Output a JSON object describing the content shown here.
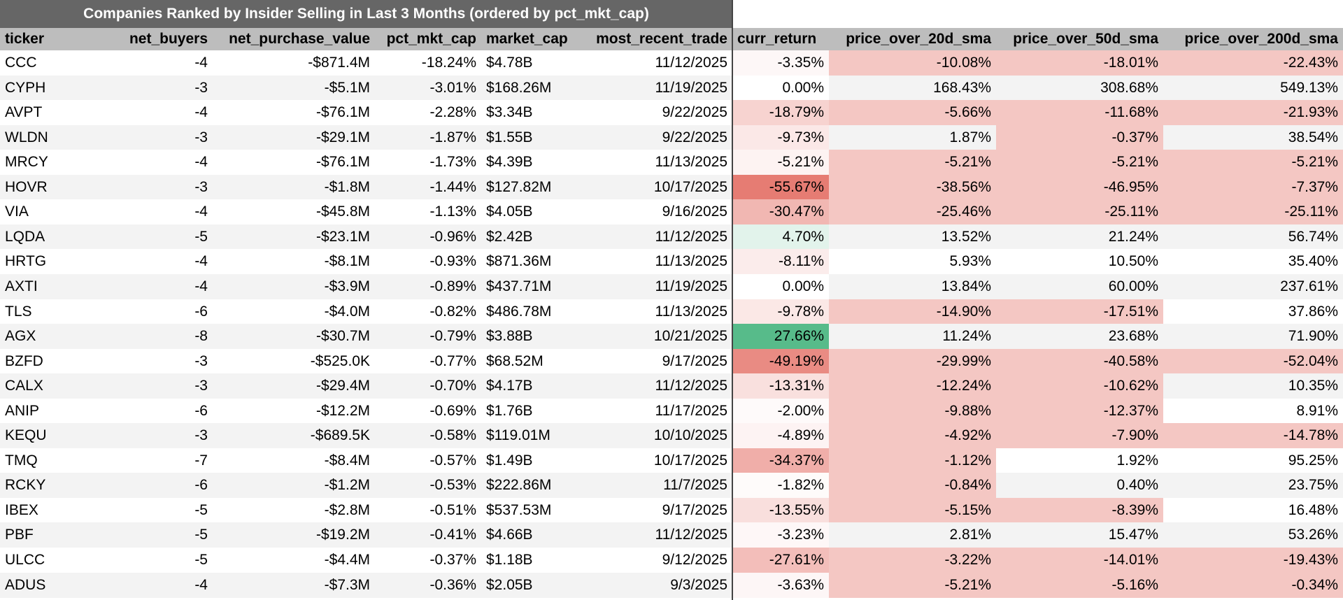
{
  "title": "Companies Ranked by Insider Selling in Last 3 Months (ordered by pct_mkt_cap)",
  "table": {
    "columns": [
      "ticker",
      "net_buyers",
      "net_purchase_value",
      "pct_mkt_cap",
      "market_cap",
      "most_recent_trade",
      "curr_return",
      "price_over_20d_sma",
      "price_over_50d_sma",
      "price_over_200d_sma"
    ],
    "rows": [
      [
        "CCC",
        "-4",
        "-$871.4M",
        "-18.24%",
        "$4.78B",
        "11/12/2025",
        "-3.35%",
        "-10.08%",
        "-18.01%",
        "-22.43%"
      ],
      [
        "CYPH",
        "-3",
        "-$5.1M",
        "-3.01%",
        "$168.26M",
        "11/19/2025",
        "0.00%",
        "168.43%",
        "308.68%",
        "549.13%"
      ],
      [
        "AVPT",
        "-4",
        "-$76.1M",
        "-2.28%",
        "$3.34B",
        "9/22/2025",
        "-18.79%",
        "-5.66%",
        "-11.68%",
        "-21.93%"
      ],
      [
        "WLDN",
        "-3",
        "-$29.1M",
        "-1.87%",
        "$1.55B",
        "9/22/2025",
        "-9.73%",
        "1.87%",
        "-0.37%",
        "38.54%"
      ],
      [
        "MRCY",
        "-4",
        "-$76.1M",
        "-1.73%",
        "$4.39B",
        "11/13/2025",
        "-5.21%",
        "-5.21%",
        "-5.21%",
        "-5.21%"
      ],
      [
        "HOVR",
        "-3",
        "-$1.8M",
        "-1.44%",
        "$127.82M",
        "10/17/2025",
        "-55.67%",
        "-38.56%",
        "-46.95%",
        "-7.37%"
      ],
      [
        "VIA",
        "-4",
        "-$45.8M",
        "-1.13%",
        "$4.05B",
        "9/16/2025",
        "-30.47%",
        "-25.46%",
        "-25.11%",
        "-25.11%"
      ],
      [
        "LQDA",
        "-5",
        "-$23.1M",
        "-0.96%",
        "$2.42B",
        "11/12/2025",
        "4.70%",
        "13.52%",
        "21.24%",
        "56.74%"
      ],
      [
        "HRTG",
        "-4",
        "-$8.1M",
        "-0.93%",
        "$871.36M",
        "11/13/2025",
        "-8.11%",
        "5.93%",
        "10.50%",
        "35.40%"
      ],
      [
        "AXTI",
        "-4",
        "-$3.9M",
        "-0.89%",
        "$437.71M",
        "11/19/2025",
        "0.00%",
        "13.84%",
        "60.00%",
        "237.61%"
      ],
      [
        "TLS",
        "-6",
        "-$4.0M",
        "-0.82%",
        "$486.78M",
        "11/13/2025",
        "-9.78%",
        "-14.90%",
        "-17.51%",
        "37.86%"
      ],
      [
        "AGX",
        "-8",
        "-$30.7M",
        "-0.79%",
        "$3.88B",
        "10/21/2025",
        "27.66%",
        "11.24%",
        "23.68%",
        "71.90%"
      ],
      [
        "BZFD",
        "-3",
        "-$525.0K",
        "-0.77%",
        "$68.52M",
        "9/17/2025",
        "-49.19%",
        "-29.99%",
        "-40.58%",
        "-52.04%"
      ],
      [
        "CALX",
        "-3",
        "-$29.4M",
        "-0.70%",
        "$4.17B",
        "11/12/2025",
        "-13.31%",
        "-12.24%",
        "-10.62%",
        "10.35%"
      ],
      [
        "ANIP",
        "-6",
        "-$12.2M",
        "-0.69%",
        "$1.76B",
        "11/17/2025",
        "-2.00%",
        "-9.88%",
        "-12.37%",
        "8.91%"
      ],
      [
        "KEQU",
        "-3",
        "-$689.5K",
        "-0.58%",
        "$119.01M",
        "10/10/2025",
        "-4.89%",
        "-4.92%",
        "-7.90%",
        "-14.78%"
      ],
      [
        "TMQ",
        "-7",
        "-$8.4M",
        "-0.57%",
        "$1.49B",
        "10/17/2025",
        "-34.37%",
        "-1.12%",
        "1.92%",
        "95.25%"
      ],
      [
        "RCKY",
        "-6",
        "-$1.2M",
        "-0.53%",
        "$222.86M",
        "11/7/2025",
        "-1.82%",
        "-0.84%",
        "0.40%",
        "23.75%"
      ],
      [
        "IBEX",
        "-5",
        "-$2.8M",
        "-0.51%",
        "$537.53M",
        "9/17/2025",
        "-13.55%",
        "-5.15%",
        "-8.39%",
        "16.48%"
      ],
      [
        "PBF",
        "-5",
        "-$19.2M",
        "-0.41%",
        "$4.66B",
        "11/12/2025",
        "-3.23%",
        "2.81%",
        "15.47%",
        "53.26%"
      ],
      [
        "ULCC",
        "-5",
        "-$4.4M",
        "-0.37%",
        "$1.18B",
        "9/12/2025",
        "-27.61%",
        "-3.22%",
        "-14.01%",
        "-19.43%"
      ],
      [
        "ADUS",
        "-4",
        "-$7.3M",
        "-0.36%",
        "$2.05B",
        "9/3/2025",
        "-3.63%",
        "-5.21%",
        "-5.16%",
        "-0.34%"
      ]
    ]
  }
}
